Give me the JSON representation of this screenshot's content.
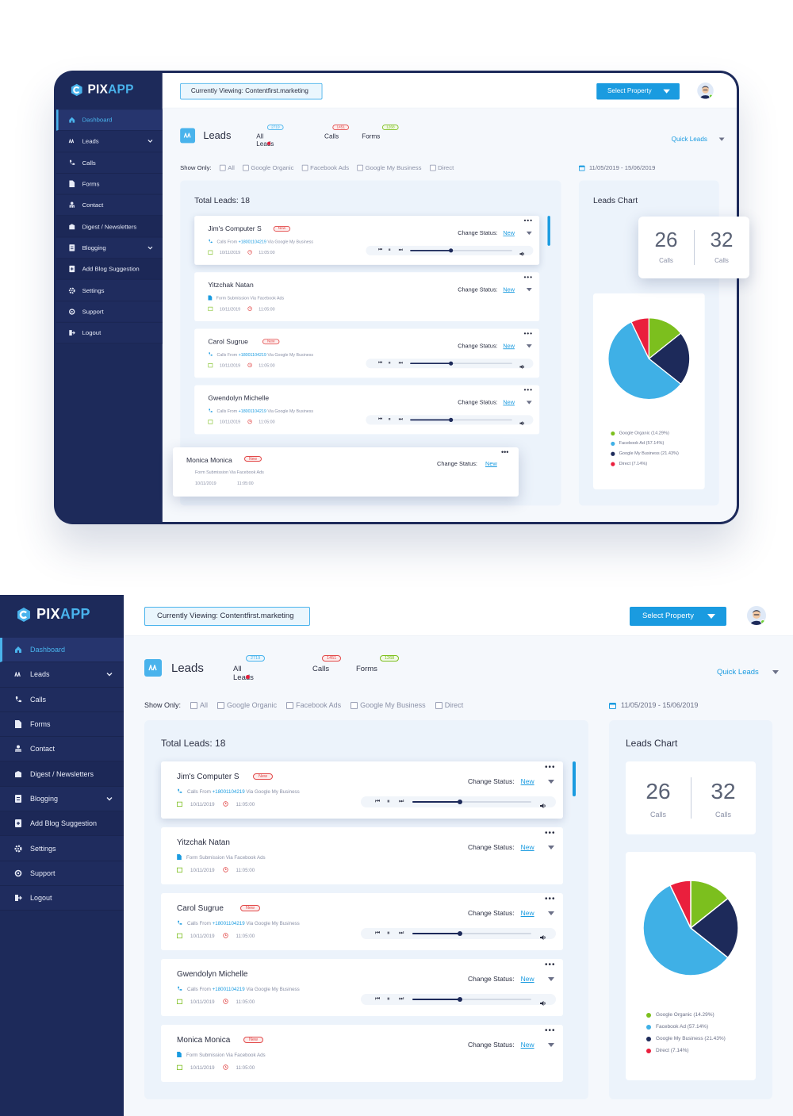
{
  "brand": {
    "pix": "PIX",
    "app": "APP"
  },
  "sidebar": {
    "items": [
      {
        "label": "Dashboard",
        "icon": "home-icon"
      },
      {
        "label": "Leads",
        "icon": "leads-icon"
      },
      {
        "label": "Calls",
        "icon": "phone-icon"
      },
      {
        "label": "Forms",
        "icon": "form-icon"
      },
      {
        "label": "Contact",
        "icon": "contact-icon"
      },
      {
        "label": "Digest / Newsletters",
        "icon": "digest-icon"
      },
      {
        "label": "Blogging",
        "icon": "blog-icon"
      },
      {
        "label": "Add Blog Suggestion",
        "icon": "add-blog-icon"
      },
      {
        "label": "Settings",
        "icon": "gear-icon"
      },
      {
        "label": "Support",
        "icon": "support-icon"
      },
      {
        "label": "Logout",
        "icon": "logout-icon"
      }
    ]
  },
  "header": {
    "viewing": "Currently Viewing: Contentfirst.marketing",
    "select_property": "Select Property"
  },
  "leads": {
    "title": "Leads",
    "tabs": [
      {
        "label": "All Leads",
        "badge": "2719"
      },
      {
        "label": "Calls",
        "badge": "1451"
      },
      {
        "label": "Forms",
        "badge": "1268"
      }
    ],
    "quick_leads": "Quick Leads",
    "show_only_label": "Show Only:",
    "filters": [
      "All",
      "Google Organic",
      "Facebook Ads",
      "Google My Business",
      "Direct"
    ],
    "date_range": "11/05/2019 - 15/06/2019",
    "total": "Total Leads: 18",
    "change_status_label": "Change Status:",
    "status_value": "New",
    "new_badge": "New",
    "cards": [
      {
        "name": "Jim's Computer S",
        "source_prefix": "Calls From",
        "phone": "+18001104219",
        "source_suffix": "Via Google My Business",
        "date": "10/11/2019",
        "time": "11:05:00",
        "has_player": true,
        "progress": 0.4
      },
      {
        "name": "Yitzchak Natan",
        "source_prefix": "Form Submission Via Facebook Ads",
        "phone": "",
        "source_suffix": "",
        "date": "10/11/2019",
        "time": "11:05:00",
        "has_player": false,
        "progress": 0
      },
      {
        "name": "Carol Sugrue",
        "source_prefix": "Calls From",
        "phone": "+18001104219",
        "source_suffix": "Via Google My Business",
        "date": "10/11/2019",
        "time": "11:05:00",
        "has_player": true,
        "progress": 0.4
      },
      {
        "name": "Gwendolyn Michelle",
        "source_prefix": "Calls From",
        "phone": "+18001104219",
        "source_suffix": "Via Google My Business",
        "date": "10/11/2019",
        "time": "11:05:00",
        "has_player": true,
        "progress": 0.4
      },
      {
        "name": "Monica Monica",
        "source_prefix": "Form Submission Via Facebook Ads",
        "phone": "",
        "source_suffix": "",
        "date": "10/11/2019",
        "time": "11:05:00",
        "has_player": false,
        "progress": 0
      }
    ]
  },
  "chart_panel": {
    "title": "Leads Chart",
    "count_a": "26",
    "count_a_label": "Calls",
    "count_b": "32",
    "count_b_label": "Calls"
  },
  "chart_data": {
    "type": "pie",
    "labels": [
      "Google Organic (14.29%)",
      "Facebook Ad (57.14%)",
      "Google My Business (21.43%)",
      "Direct (7.14%)"
    ],
    "slices": [
      {
        "name": "Google Organic",
        "value": 14.29,
        "color": "#7cbf1e"
      },
      {
        "name": "Google My Business",
        "value": 21.43,
        "color": "#1d2a5a"
      },
      {
        "name": "Facebook Ad",
        "value": 57.14,
        "color": "#3fb0e6"
      },
      {
        "name": "Direct",
        "value": 7.14,
        "color": "#ea1f3d"
      }
    ],
    "legend_position": "bottom",
    "legend_colors": [
      "#7cbf1e",
      "#3fb0e6",
      "#1d2a5a",
      "#ea1f3d"
    ]
  },
  "colors": {
    "accent": "#1a9be0",
    "sidebar": "#1d2a5a",
    "danger": "#e24a4a",
    "success": "#7cbf1e"
  }
}
